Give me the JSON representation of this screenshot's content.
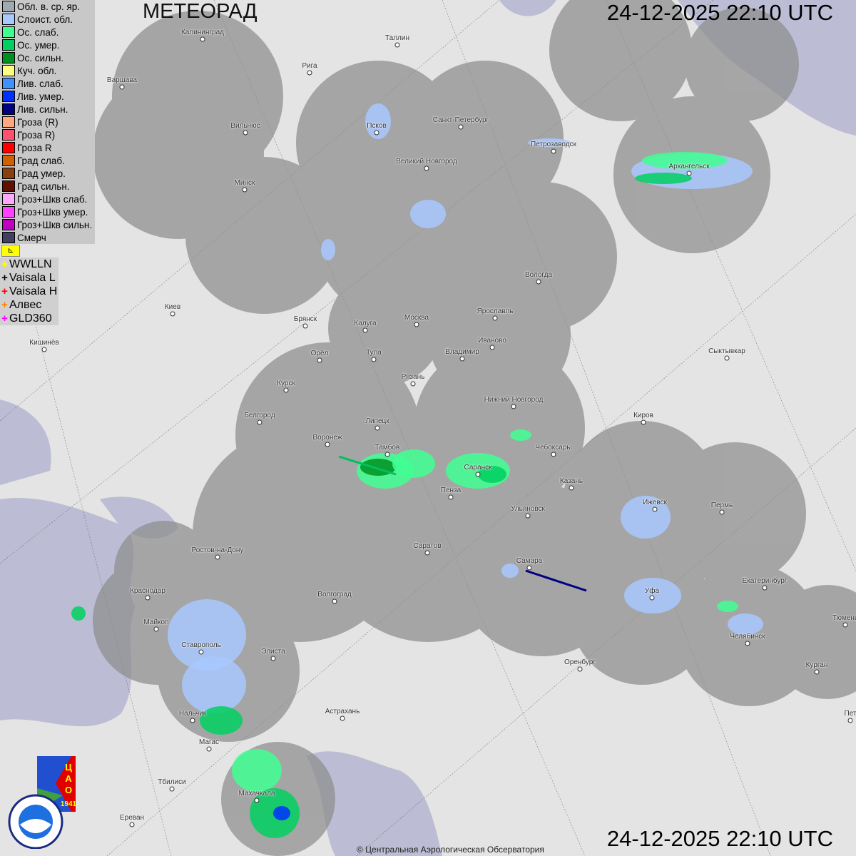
{
  "header": {
    "title": "МЕТЕОРАД",
    "datetime_top": "24-12-2025  22:10 UTC",
    "datetime_bottom": "24-12-2025  22:10 UTC"
  },
  "footer": {
    "copyright": "© Центральная Аэрологическая Обсерватория"
  },
  "legend": [
    {
      "label": "Обл. в. ср. яр.",
      "color": "#a0a8b0"
    },
    {
      "label": "Слоист. обл.",
      "color": "#a8c8ff"
    },
    {
      "label": "Ос. слаб.",
      "color": "#40ff90"
    },
    {
      "label": "Ос. умер.",
      "color": "#00d060"
    },
    {
      "label": "Ос. сильн.",
      "color": "#009020"
    },
    {
      "label": "Куч. обл.",
      "color": "#ffff80"
    },
    {
      "label": "Лив. слаб.",
      "color": "#4090ff"
    },
    {
      "label": "Лив. умер.",
      "color": "#0030ff"
    },
    {
      "label": "Лив. сильн.",
      "color": "#000080"
    },
    {
      "label": "Гроза (R)",
      "color": "#ffa880"
    },
    {
      "label": "Гроза R)",
      "color": "#ff5070"
    },
    {
      "label": "Гроза R",
      "color": "#ff0000"
    },
    {
      "label": "Град слаб.",
      "color": "#d06000"
    },
    {
      "label": "Град умер.",
      "color": "#884010"
    },
    {
      "label": "Град сильн.",
      "color": "#601000"
    },
    {
      "label": "Гроз+Шкв слаб.",
      "color": "#ffa8ff"
    },
    {
      "label": "Гроз+Шкв умер.",
      "color": "#ff40ff"
    },
    {
      "label": "Гроз+Шкв сильн.",
      "color": "#c000c0"
    },
    {
      "label": "Смерч",
      "color": "#404060"
    }
  ],
  "lightning_flag_icon": "flag-icon",
  "lightning_sources": [
    {
      "label": "WWLLN",
      "color": "#ffff00"
    },
    {
      "label": "Vaisala L",
      "color": "#000000"
    },
    {
      "label": "Vaisala H",
      "color": "#ff0000"
    },
    {
      "label": "Алвес",
      "color": "#ff8000"
    },
    {
      "label": "GLD360",
      "color": "#ff00ff"
    }
  ],
  "logos": {
    "cao": "ЦАО 1941",
    "roshydromet": "РОСГИДРОМЕТ ROSHYDROMET"
  },
  "cities": [
    "Калининград",
    "Таллин",
    "Рига",
    "Варшава",
    "Вильнюс",
    "Псков",
    "Санкт-Петербург",
    "Петрозаводск",
    "Архангельск",
    "Великий Новгород",
    "Минск",
    "Вологда",
    "Киев",
    "Брянск",
    "Калуга",
    "Москва",
    "Ярославль",
    "Иваново",
    "Владимир",
    "Орёл",
    "Тула",
    "Кишинёв",
    "Сыктывкар",
    "Рязань",
    "Курск",
    "Нижний Новгород",
    "Белгород",
    "Липецк",
    "Киров",
    "Воронеж",
    "Тамбов",
    "Чебоксары",
    "Саранск",
    "Пенза",
    "Казань",
    "Ижевск",
    "Пермь",
    "Ульяновск",
    "Саратов",
    "Ростов-на-Дону",
    "Самара",
    "Екатеринбург",
    "Краснодар",
    "Волгоград",
    "Уфа",
    "Майкоп",
    "Тюмень",
    "Челябинск",
    "Ставрополь",
    "Элиста",
    "Оренбург",
    "Курган",
    "Нальчик",
    "Астрахань",
    "Магас",
    "Тбилиси",
    "Махачкала",
    "Ереван",
    "Пет"
  ]
}
